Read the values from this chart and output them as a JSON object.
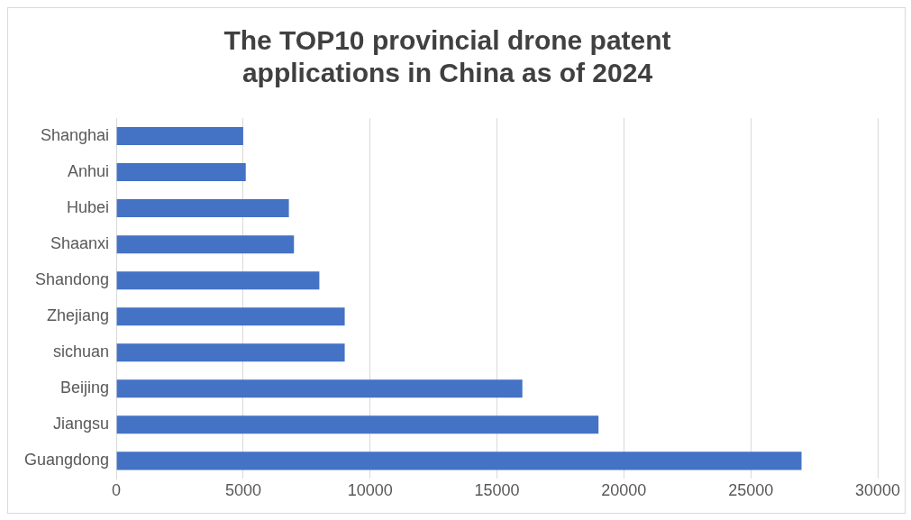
{
  "chart_data": {
    "type": "bar",
    "orientation": "horizontal",
    "title": "The TOP10 provincial drone patent applications in China as of 2024",
    "categories": [
      "Shanghai",
      "Anhui",
      "Hubei",
      "Shaanxi",
      "Shandong",
      "Zhejiang",
      "sichuan",
      "Beijing",
      "Jiangsu",
      "Guangdong"
    ],
    "values": [
      5000,
      5100,
      6800,
      7000,
      8000,
      9000,
      9000,
      16000,
      19000,
      27000
    ],
    "color": "#4472c4",
    "xlim": [
      0,
      30000
    ],
    "xticks": [
      0,
      5000,
      10000,
      15000,
      20000,
      25000,
      30000
    ],
    "grid": "x"
  }
}
